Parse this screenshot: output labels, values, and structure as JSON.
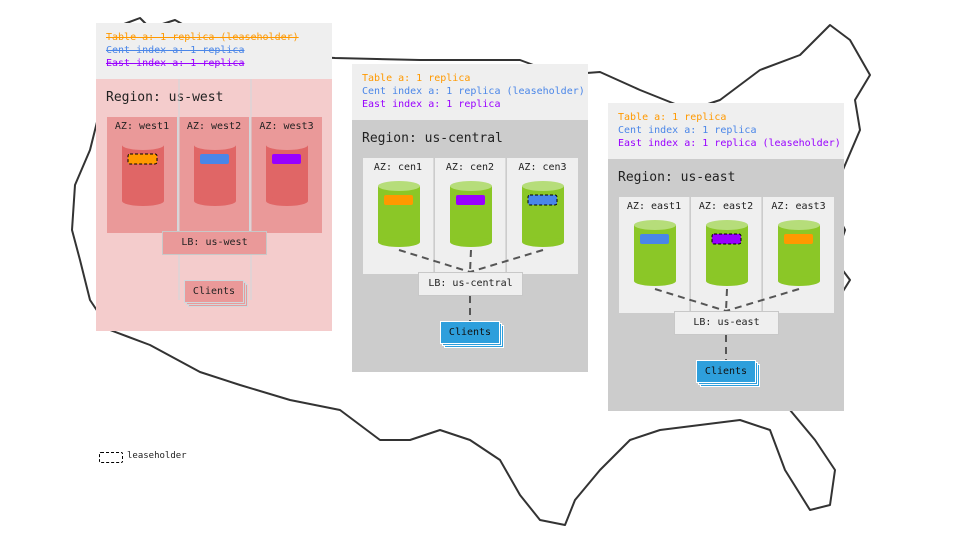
{
  "colors": {
    "table": "#ff9900",
    "cent_index": "#4a86e8",
    "east_index": "#9900ff"
  },
  "regions": [
    {
      "id": "us-west",
      "theme": "red",
      "header": [
        {
          "text": "Table a: 1 replica (leaseholder)",
          "color": "#ff9900",
          "struck": true
        },
        {
          "text": "Cent index a: 1 replica",
          "color": "#4a86e8",
          "struck": true
        },
        {
          "text": "East index a: 1 replica",
          "color": "#9900ff",
          "struck": true
        }
      ],
      "label": "Region: us-west",
      "azs": [
        {
          "label": "AZ: west1",
          "replica": "#ff9900",
          "leaseholder": true
        },
        {
          "label": "AZ: west2",
          "replica": "#4a86e8",
          "leaseholder": false
        },
        {
          "label": "AZ: west3",
          "replica": "#9900ff",
          "leaseholder": false
        }
      ],
      "lb": "LB: us-west",
      "clients": "Clients"
    },
    {
      "id": "us-central",
      "theme": "green",
      "header": [
        {
          "text": "Table a: 1 replica",
          "color": "#ff9900",
          "struck": false
        },
        {
          "text": "Cent index a: 1 replica (leaseholder)",
          "color": "#4a86e8",
          "struck": false
        },
        {
          "text": "East index a: 1 replica",
          "color": "#9900ff",
          "struck": false
        }
      ],
      "label": "Region: us-central",
      "azs": [
        {
          "label": "AZ: cen1",
          "replica": "#ff9900",
          "leaseholder": false
        },
        {
          "label": "AZ: cen2",
          "replica": "#9900ff",
          "leaseholder": false
        },
        {
          "label": "AZ: cen3",
          "replica": "#4a86e8",
          "leaseholder": true
        }
      ],
      "lb": "LB: us-central",
      "clients": "Clients"
    },
    {
      "id": "us-east",
      "theme": "green",
      "header": [
        {
          "text": "Table a: 1 replica",
          "color": "#ff9900",
          "struck": false
        },
        {
          "text": "Cent index a: 1 replica",
          "color": "#4a86e8",
          "struck": false
        },
        {
          "text": "East index a: 1 replica (leaseholder)",
          "color": "#9900ff",
          "struck": false
        }
      ],
      "label": "Region: us-east",
      "azs": [
        {
          "label": "AZ: east1",
          "replica": "#4a86e8",
          "leaseholder": false
        },
        {
          "label": "AZ: east2",
          "replica": "#9900ff",
          "leaseholder": true
        },
        {
          "label": "AZ: east3",
          "replica": "#ff9900",
          "leaseholder": false
        }
      ],
      "lb": "LB: us-east",
      "clients": "Clients"
    }
  ],
  "legend": {
    "label": "leaseholder"
  }
}
